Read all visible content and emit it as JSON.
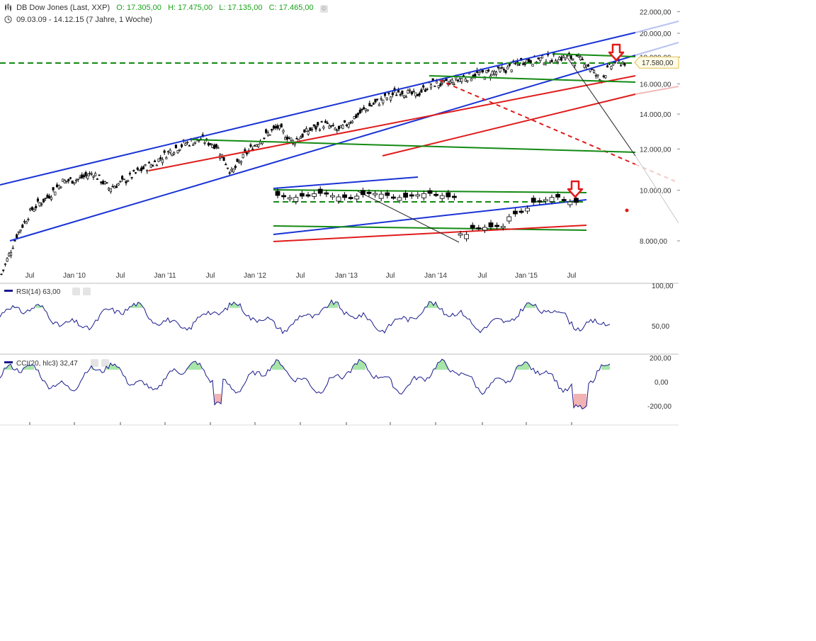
{
  "header": {
    "instrument": "DB Dow Jones (Last, XXP)",
    "open_label": "O:",
    "open": "17.305,00",
    "high_label": "H:",
    "high": "17.475,00",
    "low_label": "L:",
    "low": "17.135,00",
    "close_label": "C:",
    "close": "17.465,00",
    "range": "09.03.09 - 14.12.15 (7 Jahre, 1 Woche)"
  },
  "icons": {
    "chart": "candlestick-chart-icon",
    "clock": "clock-icon",
    "settings": "gear-icon",
    "close": "close-icon"
  },
  "colors": {
    "price": "#000000",
    "channel": "#1a33d6",
    "support": "#e01b1b",
    "horizontal": "#138a13",
    "indicator": "#1a1a8c",
    "overbought_fill": "#a8e6a8",
    "oversold_fill": "#f2b3b3",
    "marker": "#e01b1b"
  },
  "chart_data": [
    {
      "type": "candlestick",
      "title": "DB Dow Jones (Last, XXP)",
      "x_ticks": [
        "Jul",
        "Jan '10",
        "Jul",
        "Jan '11",
        "Jul",
        "Jan '12",
        "Jul",
        "Jan '13",
        "Jul",
        "Jan '14",
        "Jul",
        "Jan '15",
        "Jul"
      ],
      "y_ticks": [
        "22.000,00",
        "20.000,00",
        "18.000,00",
        "16.000,00",
        "14.000,00",
        "12.000,00",
        "10.000,00",
        "8.000,00"
      ],
      "y_scale": "log",
      "ylim": [
        6650,
        22000
      ],
      "last_value_label": "17.580,00",
      "x": [
        "2009-03",
        "2009-05",
        "2009-07",
        "2009-09",
        "2009-11",
        "2010-01",
        "2010-03",
        "2010-05",
        "2010-07",
        "2010-09",
        "2010-11",
        "2011-01",
        "2011-03",
        "2011-05",
        "2011-07",
        "2011-09",
        "2011-11",
        "2012-01",
        "2012-03",
        "2012-05",
        "2012-07",
        "2012-09",
        "2012-11",
        "2013-01",
        "2013-03",
        "2013-05",
        "2013-07",
        "2013-09",
        "2013-11",
        "2014-01",
        "2014-03",
        "2014-05",
        "2014-07",
        "2014-09",
        "2014-11",
        "2015-01",
        "2015-03",
        "2015-05",
        "2015-07",
        "2015-09",
        "2015-11",
        "2015-12"
      ],
      "close": [
        6900,
        8200,
        9200,
        9700,
        10400,
        10500,
        10800,
        10100,
        10400,
        10900,
        11300,
        11900,
        12300,
        12500,
        12200,
        10800,
        11800,
        12600,
        13200,
        12400,
        13000,
        13400,
        13000,
        13800,
        14500,
        15000,
        15500,
        15200,
        16000,
        16000,
        16400,
        16700,
        16800,
        17100,
        17700,
        17800,
        17900,
        18000,
        17700,
        16300,
        17700,
        17580
      ],
      "series": [
        {
          "name": "RSI(14)",
          "last": "63,00",
          "y_ticks": [
            "100,00",
            "50,00"
          ]
        },
        {
          "name": "CCI(20, hlc3)",
          "last": "32,47",
          "y_ticks": [
            "200,00",
            "0,00",
            "-200,00"
          ]
        }
      ]
    }
  ]
}
